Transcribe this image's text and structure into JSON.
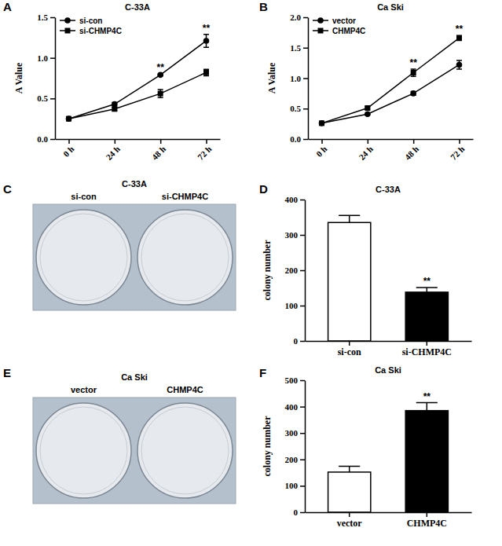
{
  "chart_data": [
    {
      "type": "line",
      "panel": "A",
      "title": "C-33A",
      "y_label": "A Value",
      "categories": [
        "0 h",
        "24 h",
        "48 h",
        "72 h"
      ],
      "series": [
        {
          "name": "si-con",
          "color": "#000000",
          "marker": "circle",
          "values": [
            0.25,
            0.43,
            0.79,
            1.21
          ],
          "errors": [
            0.01,
            0.02,
            0.01,
            0.08
          ]
        },
        {
          "name": "si-CHMP4C",
          "color": "#000000",
          "marker": "square",
          "values": [
            0.25,
            0.37,
            0.56,
            0.82
          ],
          "errors": [
            0.01,
            0.02,
            0.05,
            0.04
          ]
        }
      ],
      "ylim": [
        0,
        1.5
      ],
      "yticks": [
        {
          "value": 0,
          "label": "0.0"
        },
        {
          "value": 0.5,
          "label": "0.5"
        },
        {
          "value": 1,
          "label": "1.0"
        },
        {
          "value": 1.5,
          "label": "1.5"
        }
      ],
      "legend": "upper left",
      "annotations": [
        {
          "text": "**",
          "category": "48 h"
        },
        {
          "text": "**",
          "category": "72 h"
        }
      ]
    },
    {
      "type": "line",
      "panel": "B",
      "title": "Ca Ski",
      "y_label": "A Value",
      "categories": [
        "0 h",
        "24 h",
        "48 h",
        "72 h"
      ],
      "series": [
        {
          "name": "vector",
          "color": "#000000",
          "marker": "circle",
          "values": [
            0.26,
            0.41,
            0.75,
            1.22
          ],
          "errors": [
            0.01,
            0.01,
            0.03,
            0.07
          ]
        },
        {
          "name": "CHMP4C",
          "color": "#000000",
          "marker": "square",
          "values": [
            0.26,
            0.51,
            1.09,
            1.66
          ],
          "errors": [
            0.01,
            0.02,
            0.06,
            0.04
          ]
        }
      ],
      "ylim": [
        0,
        2
      ],
      "yticks": [
        {
          "value": 0,
          "label": "0.0"
        },
        {
          "value": 0.5,
          "label": "0.5"
        },
        {
          "value": 1,
          "label": "1.0"
        },
        {
          "value": 1.5,
          "label": "1.5"
        },
        {
          "value": 2,
          "label": "2.0"
        }
      ],
      "legend": "upper left",
      "annotations": [
        {
          "text": "**",
          "category": "48 h"
        },
        {
          "text": "**",
          "category": "72 h"
        }
      ]
    },
    {
      "type": "image",
      "panel": "C",
      "title": "C-33A",
      "categories": [
        "si-con",
        "si-CHMP4C"
      ]
    },
    {
      "type": "bar",
      "panel": "D",
      "title": "C-33A",
      "y_label": "colony number",
      "categories": [
        "si-con",
        "si-CHMP4C"
      ],
      "values": [
        335,
        138
      ],
      "errors": [
        20,
        13
      ],
      "colors": [
        "#ffffff",
        "#000000"
      ],
      "ylim": [
        0,
        400
      ],
      "yticks": [
        0,
        100,
        200,
        300,
        400
      ],
      "annotations": [
        {
          "text": "**",
          "category": "si-CHMP4C"
        }
      ]
    },
    {
      "type": "image",
      "panel": "E",
      "title": "Ca Ski",
      "categories": [
        "vector",
        "CHMP4C"
      ]
    },
    {
      "type": "bar",
      "panel": "F",
      "title": "Ca Ski",
      "y_label": "colony number",
      "categories": [
        "vector",
        "CHMP4C"
      ],
      "values": [
        152,
        385
      ],
      "errors": [
        22,
        30
      ],
      "colors": [
        "#ffffff",
        "#000000"
      ],
      "ylim": [
        0,
        500
      ],
      "yticks": [
        0,
        100,
        200,
        300,
        400,
        500
      ],
      "annotations": [
        {
          "text": "**",
          "category": "CHMP4C"
        }
      ]
    }
  ]
}
